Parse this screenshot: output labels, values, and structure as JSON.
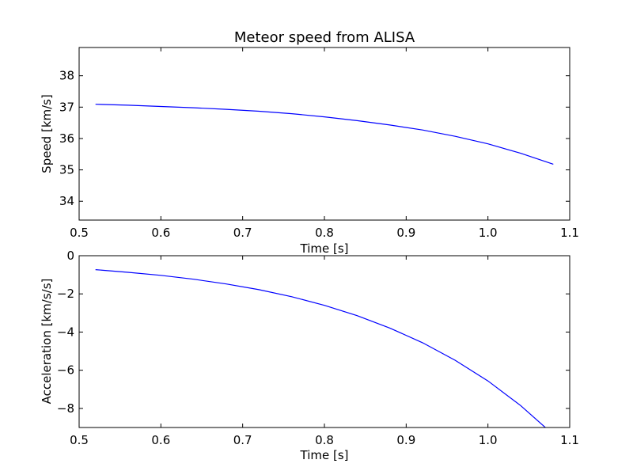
{
  "chart_data": [
    {
      "type": "line",
      "title": "Meteor speed from  ALISA",
      "xlabel": "Time [s]",
      "ylabel": "Speed [km/s]",
      "xlim": [
        0.5,
        1.1
      ],
      "ylim": [
        33.4,
        38.9
      ],
      "xticks": [
        "0.5",
        "0.6",
        "0.7",
        "0.8",
        "0.9",
        "1.0",
        "1.1"
      ],
      "yticks": [
        "34",
        "35",
        "36",
        "37",
        "38"
      ],
      "grid": false,
      "color": "#0000ff",
      "series": [
        {
          "x": [
            0.52,
            0.56,
            0.6,
            0.64,
            0.68,
            0.72,
            0.76,
            0.8,
            0.84,
            0.88,
            0.92,
            0.96,
            1.0,
            1.04,
            1.08
          ],
          "y": [
            37.09,
            37.06,
            37.02,
            36.98,
            36.93,
            36.87,
            36.79,
            36.69,
            36.57,
            36.43,
            36.27,
            36.07,
            35.83,
            35.53,
            35.18
          ]
        }
      ]
    },
    {
      "type": "line",
      "xlabel": "Time [s]",
      "ylabel": "Acceleration [km/s/s]",
      "xlim": [
        0.5,
        1.1
      ],
      "ylim": [
        -9,
        0
      ],
      "xticks": [
        "0.5",
        "0.6",
        "0.7",
        "0.8",
        "0.9",
        "1.0",
        "1.1"
      ],
      "yticks": [
        "0",
        "−2",
        "−4",
        "−6",
        "−8"
      ],
      "grid": false,
      "color": "#0000ff",
      "series": [
        {
          "x": [
            0.52,
            0.56,
            0.6,
            0.64,
            0.68,
            0.72,
            0.76,
            0.8,
            0.84,
            0.88,
            0.92,
            0.96,
            1.0,
            1.04,
            1.08
          ],
          "y": [
            -0.73,
            -0.87,
            -1.03,
            -1.23,
            -1.48,
            -1.78,
            -2.15,
            -2.6,
            -3.14,
            -3.79,
            -4.56,
            -5.48,
            -6.56,
            -7.85,
            -9.37
          ]
        }
      ]
    }
  ]
}
